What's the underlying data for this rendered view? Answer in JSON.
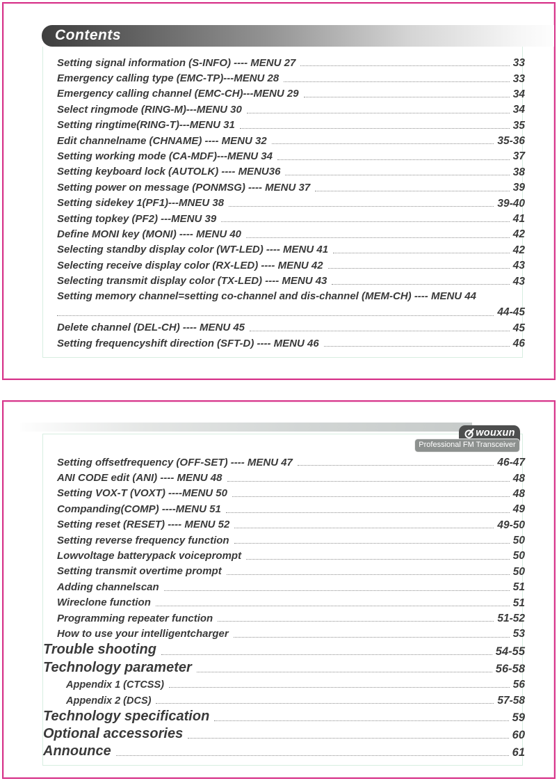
{
  "colors": {
    "accent_pink": "#d7358b",
    "text": "#3a3a3a",
    "header_gradient_dark": "#3e3e3e",
    "header_gradient_light": "#fdfdfd",
    "badge_dark": "#4d4e4e",
    "badge_gray": "#8d918f",
    "dot_leader": "#8c8c8c",
    "frame_line": "#b7e0c8"
  },
  "page1": {
    "header": "Contents",
    "entries": [
      {
        "label": "Setting signal information (S-INFO) ---- MENU 27",
        "page": "33",
        "level": "item"
      },
      {
        "label": "Emergency calling type (EMC-TP)---MENU 28",
        "page": "33",
        "level": "item"
      },
      {
        "label": "Emergency calling channel (EMC-CH)---MENU 29",
        "page": "34",
        "level": "item"
      },
      {
        "label": "Select ringmode (RING-M)---MENU 30",
        "page": "34",
        "level": "item"
      },
      {
        "label": "Setting ringtime(RING-T)---MENU 31",
        "page": "35",
        "level": "item"
      },
      {
        "label": "Edit channelname (CHNAME) ---- MENU 32",
        "page": "35-36",
        "level": "item"
      },
      {
        "label": "Setting working mode (CA-MDF)---MENU 34",
        "page": "37",
        "level": "item"
      },
      {
        "label": "Setting keyboard lock (AUTOLK) ---- MENU36",
        "page": "38",
        "level": "item"
      },
      {
        "label": "Setting power on message (PONMSG) ---- MENU 37",
        "page": "39",
        "level": "item"
      },
      {
        "label": "Setting sidekey 1(PF1)---MNEU 38",
        "page": "39-40",
        "level": "item"
      },
      {
        "label": "Setting topkey (PF2) ---MENU 39",
        "page": "41",
        "level": "item"
      },
      {
        "label": "Define MONI key (MONI) ---- MENU 40",
        "page": "42",
        "level": "item"
      },
      {
        "label": "Selecting standby display color (WT-LED) ---- MENU 41",
        "page": "42",
        "level": "item"
      },
      {
        "label": "Selecting receive display color (RX-LED) ---- MENU 42",
        "page": "43",
        "level": "item"
      },
      {
        "label": "Selecting transmit display color (TX-LED) ---- MENU 43",
        "page": "43",
        "level": "item"
      },
      {
        "label": "Setting memory channel=setting co-channel and dis-channel (MEM-CH) ---- MENU 44",
        "page": "",
        "level": "nolead",
        "dots": false
      },
      {
        "label": "",
        "page": "44-45",
        "level": "cont"
      },
      {
        "label": "Delete channel (DEL-CH) ---- MENU 45",
        "page": "45",
        "level": "item"
      },
      {
        "label": "Setting frequencyshift direction (SFT-D) ---- MENU 46",
        "page": "46",
        "level": "item"
      }
    ]
  },
  "page2": {
    "logo": {
      "brand": "wouxun",
      "tagline": "Professional FM Transceiver"
    },
    "entries": [
      {
        "label": "Setting offsetfrequency (OFF-SET) ---- MENU 47",
        "page": "46-47",
        "level": "item"
      },
      {
        "label": "ANI CODE edit (ANI) ---- MENU 48",
        "page": "48",
        "level": "item"
      },
      {
        "label": "Setting VOX-T (VOXT) ----MENU 50",
        "page": "48",
        "level": "item"
      },
      {
        "label": "Companding(COMP) ----MENU 51",
        "page": "49",
        "level": "item"
      },
      {
        "label": "Setting reset (RESET) ---- MENU 52",
        "page": "49-50",
        "level": "item"
      },
      {
        "label": "Setting reverse frequency function",
        "page": "50",
        "level": "item"
      },
      {
        "label": "Lowvoltage batterypack voiceprompt",
        "page": "50",
        "level": "item"
      },
      {
        "label": "Setting transmit overtime prompt",
        "page": "50",
        "level": "item"
      },
      {
        "label": "Adding channelscan",
        "page": "51",
        "level": "item"
      },
      {
        "label": "Wireclone function",
        "page": "51",
        "level": "item"
      },
      {
        "label": "Programming repeater function",
        "page": "51-52",
        "level": "item"
      },
      {
        "label": "How to use your intelligentcharger",
        "page": "53",
        "level": "item"
      },
      {
        "label": "Trouble shooting",
        "page": "54-55",
        "level": "section"
      },
      {
        "label": "Technology parameter",
        "page": "56-58",
        "level": "section"
      },
      {
        "label": "Appendix 1 (CTCSS)",
        "page": "56",
        "level": "sub"
      },
      {
        "label": "Appendix 2 (DCS)",
        "page": "57-58",
        "level": "sub"
      },
      {
        "label": "Technology specification",
        "page": "59",
        "level": "section"
      },
      {
        "label": "Optional accessories",
        "page": "60",
        "level": "section"
      },
      {
        "label": "Announce",
        "page": "61",
        "level": "section"
      }
    ]
  }
}
